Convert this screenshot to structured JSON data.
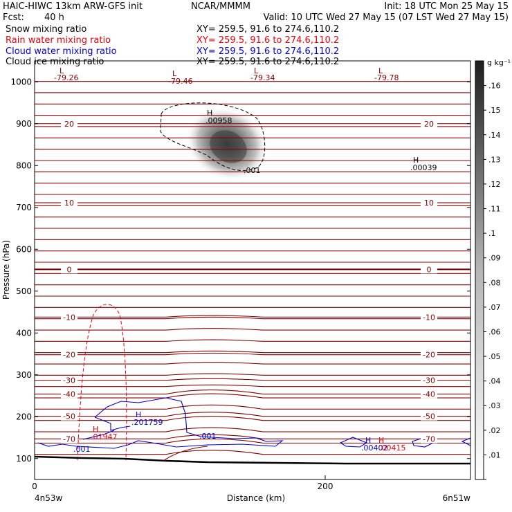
{
  "header": {
    "model_line": "HAIC-HIWC 13km ARW-GFS init",
    "org": "NCAR/MMMM",
    "init": "Init: 18 UTC Mon 25 May 15",
    "fcst_label": "Fcst:",
    "fcst_value": "40 h",
    "valid": "Valid: 10 UTC Wed 27 May 15 (07 LST Wed 27 May 15)",
    "fields": [
      {
        "name": "Snow mixing ratio",
        "xy": "XY= 259.5, 91.6 to 274.6,110.2",
        "color": "#000000"
      },
      {
        "name": "Rain water mixing ratio",
        "xy": "XY= 259.5, 91.6 to 274.6,110.2",
        "color": "#e8000b"
      },
      {
        "name": "Cloud water mixing ratio",
        "xy": "XY= 259.5, 91.6 to 274.6,110.2",
        "color": "#0000cc"
      },
      {
        "name": "Cloud ice mixing ratio",
        "xy": "XY= 259.5, 91.6 to 274.6,110.2",
        "color": "#000000"
      }
    ]
  },
  "colorbar": {
    "unit_label": "g kg⁻¹",
    "ticks": [
      "0",
      ".01",
      ".02",
      ".03",
      ".04",
      ".05",
      ".06",
      ".07",
      ".08",
      ".09",
      ".1",
      ".11",
      ".12",
      ".13",
      ".14",
      ".15",
      ".16"
    ],
    "max": 0.17
  },
  "axis_text": {
    "left_label": "4n53w",
    "right_label": "6n51w"
  },
  "chart_data": {
    "type": "heatmap",
    "xlabel": "Distance (km)",
    "ylabel": "Pressure (hPa)",
    "xlim": [
      0,
      300
    ],
    "ylim": [
      1050,
      50
    ],
    "xticks": [
      0,
      200
    ],
    "yticks": [
      100,
      200,
      300,
      400,
      500,
      600,
      700,
      800,
      900,
      1000
    ],
    "snow_max": {
      "x": 128,
      "p": 258,
      "value": 0.16
    },
    "temperature_isotherms": [
      {
        "label": "-70",
        "p": 147
      },
      {
        "label": "-50",
        "p": 201
      },
      {
        "label": "-40",
        "p": 254
      },
      {
        "label": "-30",
        "p": 287
      },
      {
        "label": "-20",
        "p": 348
      },
      {
        "label": "-10",
        "p": 438
      },
      {
        "label": "0",
        "p": 552
      },
      {
        "label": "10",
        "p": 711
      },
      {
        "label": "20",
        "p": 900
      }
    ],
    "contour_labels": [
      {
        "text": "L",
        "value": "-79.26",
        "color": "#800000"
      },
      {
        "text": "L",
        "value": "-79.46",
        "color": "#800000"
      },
      {
        "text": "L",
        "value": "-79.34",
        "color": "#800000"
      },
      {
        "text": "L",
        "value": "-79.78",
        "color": "#800000"
      },
      {
        "text": "H",
        "value": ".00958",
        "color": "#000000"
      },
      {
        "text": "",
        "value": ".001",
        "color": "#000000"
      },
      {
        "text": "H",
        "value": ".00039",
        "color": "#000000"
      },
      {
        "text": "H",
        "value": ".201759",
        "color": "#0000cc"
      },
      {
        "text": "",
        "value": ".001",
        "color": "#0000cc"
      },
      {
        "text": "",
        "value": ".001",
        "color": "#0000cc"
      },
      {
        "text": "H",
        "value": ".01947",
        "color": "#e8000b"
      },
      {
        "text": "H",
        "value": ".00402",
        "color": "#0000cc"
      },
      {
        "text": "H",
        "value": ".00415",
        "color": "#e8000b"
      }
    ],
    "colors": {
      "temperature": "#800000",
      "rain": "#e8000b",
      "cloud_water": "#0000cc",
      "snow_ice": "#000000"
    }
  }
}
